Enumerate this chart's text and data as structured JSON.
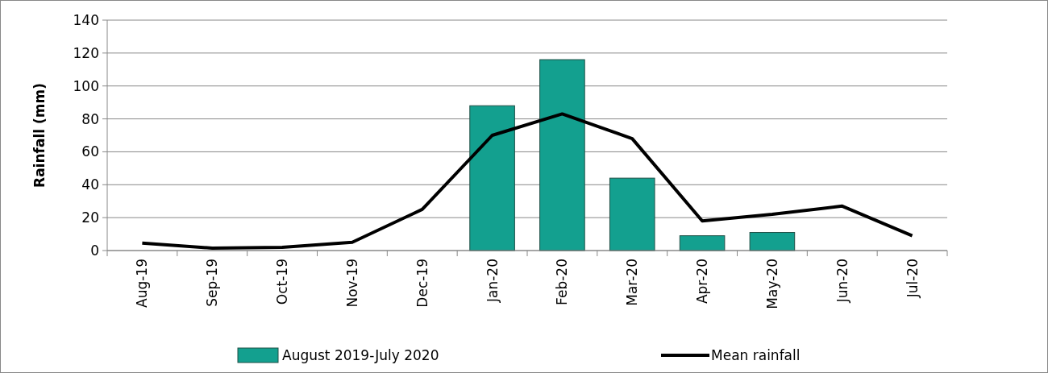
{
  "chart_data": {
    "type": "bar",
    "ylabel": "Rainfall (mm)",
    "categories": [
      "Aug-19",
      "Sep-19",
      "Oct-19",
      "Nov-19",
      "Dec-19",
      "Jan-20",
      "Feb-20",
      "Mar-20",
      "Apr-20",
      "May-20",
      "Jun-20",
      "Jul-20"
    ],
    "series": [
      {
        "name": "August 2019-July 2020",
        "color": "#13a08f",
        "values": [
          0,
          0,
          0,
          0,
          0,
          88,
          116,
          44,
          9,
          11,
          0,
          0
        ]
      },
      {
        "name": "Mean rainfall",
        "type": "line",
        "color": "#000000",
        "values": [
          4.5,
          1.5,
          2,
          5,
          25,
          70,
          83,
          68,
          18,
          22,
          27,
          9
        ]
      }
    ],
    "ylim": [
      0,
      140
    ],
    "yticks": [
      0,
      20,
      40,
      60,
      80,
      100,
      120,
      140
    ],
    "grid": "y",
    "legend": "bottom",
    "line_style": "solid",
    "marker": "none"
  }
}
